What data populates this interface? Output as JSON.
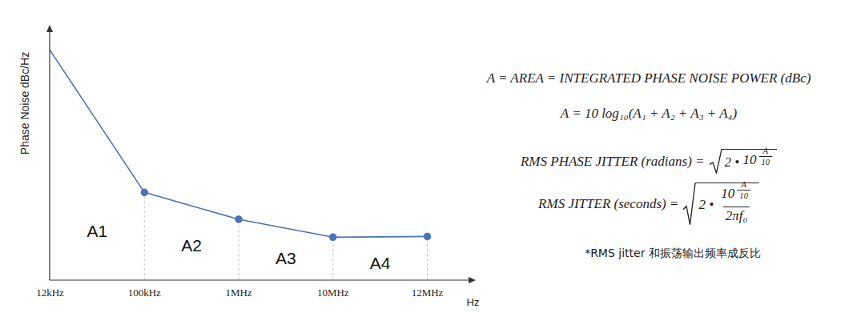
{
  "chart_data": {
    "type": "line",
    "y_label": "Phase Noise dBc/Hz",
    "x_label": "Hz",
    "categories": [
      "12kHz",
      "100kHz",
      "1MHz",
      "10MHz",
      "12MHz"
    ],
    "values": [
      94,
      36,
      25,
      17.7,
      18
    ],
    "color": "#4a72b8",
    "marker": "circle",
    "ylim": [
      0,
      100
    ],
    "tick_labels": "x",
    "grid": false,
    "annotations": [
      "A1",
      "A2",
      "A3",
      "A4"
    ]
  },
  "formulas": {
    "area_definition": "A = AREA = INTEGRATED PHASE NOISE POWER (dBc)",
    "area_sum": "A = 10 log₁₀(A₁ + A₂ + A₃ + A₄)",
    "phase_jitter": {
      "lhs": "RMS PHASE JITTER (radians) =",
      "radicand": "2 •",
      "base": "10",
      "exponent": {
        "numerator": "A",
        "denominator": "10"
      }
    },
    "jitter": {
      "lhs": "RMS JITTER (seconds) =",
      "radicand": "2 •",
      "base": "10",
      "exponent": {
        "numerator": "A",
        "denominator": "10"
      },
      "denominator": "2πf₀"
    },
    "note": "*RMS jitter 和振荡输出频率成反比"
  }
}
